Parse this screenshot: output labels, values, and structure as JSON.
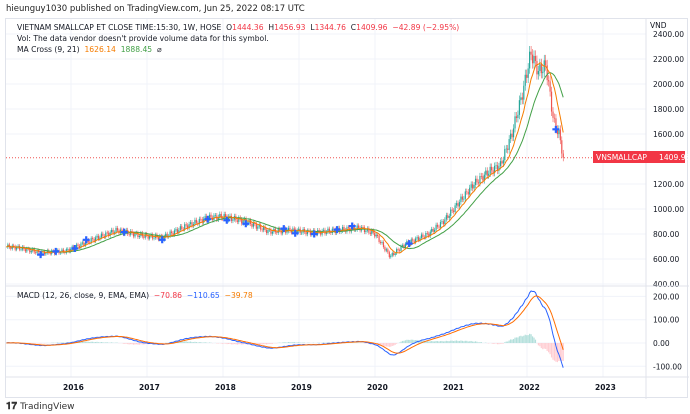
{
  "publisher": "hieunguy1030 published on TradingView.com, Jun 25, 2022 08:17 UTC",
  "legend": {
    "symbol": "VIETNAM SMALLCAP ET CLOSE TIME:15:30, 1W, HOSE",
    "o_label": "O",
    "o": "1444.36",
    "h_label": "H",
    "h": "1456.93",
    "l_label": "L",
    "l": "1344.76",
    "c_label": "C",
    "c": "1409.96",
    "change": "−42.89 (−2.95%)",
    "vol": "Vol: The data vendor doesn't provide volume data for this symbol.",
    "ma_name": "MA Cross (9, 21)",
    "ma_fast": "1626.14",
    "ma_slow": "1888.45",
    "ma_icon": "⌀"
  },
  "macd_legend": {
    "name": "MACD (12, 26, close, 9, EMA, EMA)",
    "hist": "−70.86",
    "macd": "−110.65",
    "signal": "−39.78"
  },
  "price_tag": {
    "symbol": "VNSMALLCAP",
    "value": "1409.96"
  },
  "currency": "VND",
  "footer": "TradingView",
  "colors": {
    "up": "#26a69a",
    "down": "#ef5350",
    "ma_fast": "#f57c00",
    "ma_slow": "#43a047",
    "macd": "#2962ff",
    "signal": "#ff6d00",
    "cross": "#2962ff"
  },
  "chart_data": {
    "type": "candlestick",
    "price_axis": {
      "ticks": [
        "2400.00",
        "2200.00",
        "2000.00",
        "1800.00",
        "1600.00",
        "1200.00",
        "1000.00",
        "800.00",
        "600.00",
        "400.00"
      ],
      "range": [
        400,
        2400
      ]
    },
    "macd_axis": {
      "ticks": [
        "200.00",
        "100.00",
        "0.00",
        "-100.00"
      ],
      "range": [
        -150,
        230
      ]
    },
    "time_axis": {
      "ticks": [
        "2016",
        "2017",
        "2018",
        "2019",
        "2020",
        "2021",
        "2022",
        "2023"
      ]
    },
    "close_series": [
      [
        2015.15,
        700
      ],
      [
        2015.3,
        690
      ],
      [
        2015.6,
        650
      ],
      [
        2015.9,
        660
      ],
      [
        2016.0,
        680
      ],
      [
        2016.3,
        760
      ],
      [
        2016.6,
        830
      ],
      [
        2016.9,
        790
      ],
      [
        2017.2,
        770
      ],
      [
        2017.5,
        860
      ],
      [
        2017.8,
        930
      ],
      [
        2018.0,
        940
      ],
      [
        2018.3,
        900
      ],
      [
        2018.6,
        820
      ],
      [
        2018.9,
        830
      ],
      [
        2019.2,
        810
      ],
      [
        2019.5,
        830
      ],
      [
        2019.8,
        850
      ],
      [
        2020.0,
        800
      ],
      [
        2020.2,
        620
      ],
      [
        2020.4,
        720
      ],
      [
        2020.7,
        800
      ],
      [
        2020.9,
        900
      ],
      [
        2021.1,
        1050
      ],
      [
        2021.3,
        1200
      ],
      [
        2021.5,
        1300
      ],
      [
        2021.65,
        1350
      ],
      [
        2021.8,
        1600
      ],
      [
        2021.95,
        1950
      ],
      [
        2022.05,
        2250
      ],
      [
        2022.15,
        2100
      ],
      [
        2022.25,
        2150
      ],
      [
        2022.35,
        1700
      ],
      [
        2022.42,
        1600
      ],
      [
        2022.48,
        1410
      ]
    ],
    "cross_signals": [
      2015.6,
      2015.8,
      2016.05,
      2016.2,
      2016.7,
      2017.2,
      2017.8,
      2018.05,
      2018.3,
      2018.8,
      2018.95,
      2019.2,
      2019.5,
      2019.7,
      2020.45,
      2022.38
    ]
  }
}
